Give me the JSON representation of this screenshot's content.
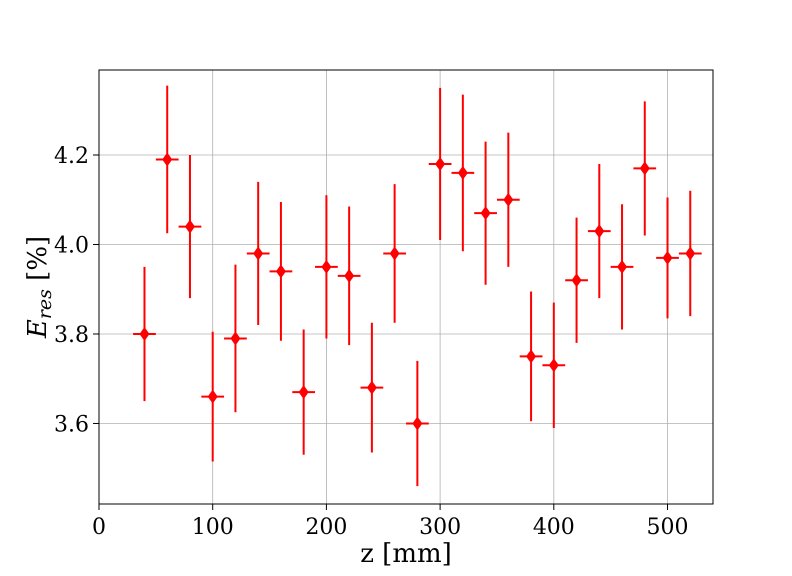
{
  "chart_data": {
    "type": "scatter",
    "title": "",
    "xlabel": "z [mm]",
    "ylabel": {
      "main": "E",
      "sub": "res",
      "unit": " [%]"
    },
    "xlim": [
      0,
      540
    ],
    "ylim": [
      3.42,
      4.39
    ],
    "x_ticks": [
      0,
      100,
      200,
      300,
      400,
      500
    ],
    "y_ticks": [
      3.6,
      3.8,
      4.0,
      4.2
    ],
    "grid": true,
    "color": "#ff0000",
    "marker": "diamond",
    "x_half_width": 10,
    "points": [
      {
        "x": 40,
        "y": 3.8,
        "err": 0.15
      },
      {
        "x": 60,
        "y": 4.19,
        "err": 0.165
      },
      {
        "x": 80,
        "y": 4.04,
        "err": 0.16
      },
      {
        "x": 100,
        "y": 3.66,
        "err": 0.145
      },
      {
        "x": 120,
        "y": 3.79,
        "err": 0.165
      },
      {
        "x": 140,
        "y": 3.98,
        "err": 0.16
      },
      {
        "x": 160,
        "y": 3.94,
        "err": 0.155
      },
      {
        "x": 180,
        "y": 3.67,
        "err": 0.14
      },
      {
        "x": 200,
        "y": 3.95,
        "err": 0.16
      },
      {
        "x": 220,
        "y": 3.93,
        "err": 0.155
      },
      {
        "x": 240,
        "y": 3.68,
        "err": 0.145
      },
      {
        "x": 260,
        "y": 3.98,
        "err": 0.155
      },
      {
        "x": 280,
        "y": 3.6,
        "err": 0.14
      },
      {
        "x": 300,
        "y": 4.18,
        "err": 0.17
      },
      {
        "x": 320,
        "y": 4.16,
        "err": 0.175
      },
      {
        "x": 340,
        "y": 4.07,
        "err": 0.16
      },
      {
        "x": 360,
        "y": 4.1,
        "err": 0.15
      },
      {
        "x": 380,
        "y": 3.75,
        "err": 0.145
      },
      {
        "x": 400,
        "y": 3.73,
        "err": 0.14
      },
      {
        "x": 420,
        "y": 3.92,
        "err": 0.14
      },
      {
        "x": 440,
        "y": 4.03,
        "err": 0.15
      },
      {
        "x": 460,
        "y": 3.95,
        "err": 0.14
      },
      {
        "x": 480,
        "y": 4.17,
        "err": 0.15
      },
      {
        "x": 500,
        "y": 3.97,
        "err": 0.135
      },
      {
        "x": 520,
        "y": 3.98,
        "err": 0.14
      }
    ]
  }
}
